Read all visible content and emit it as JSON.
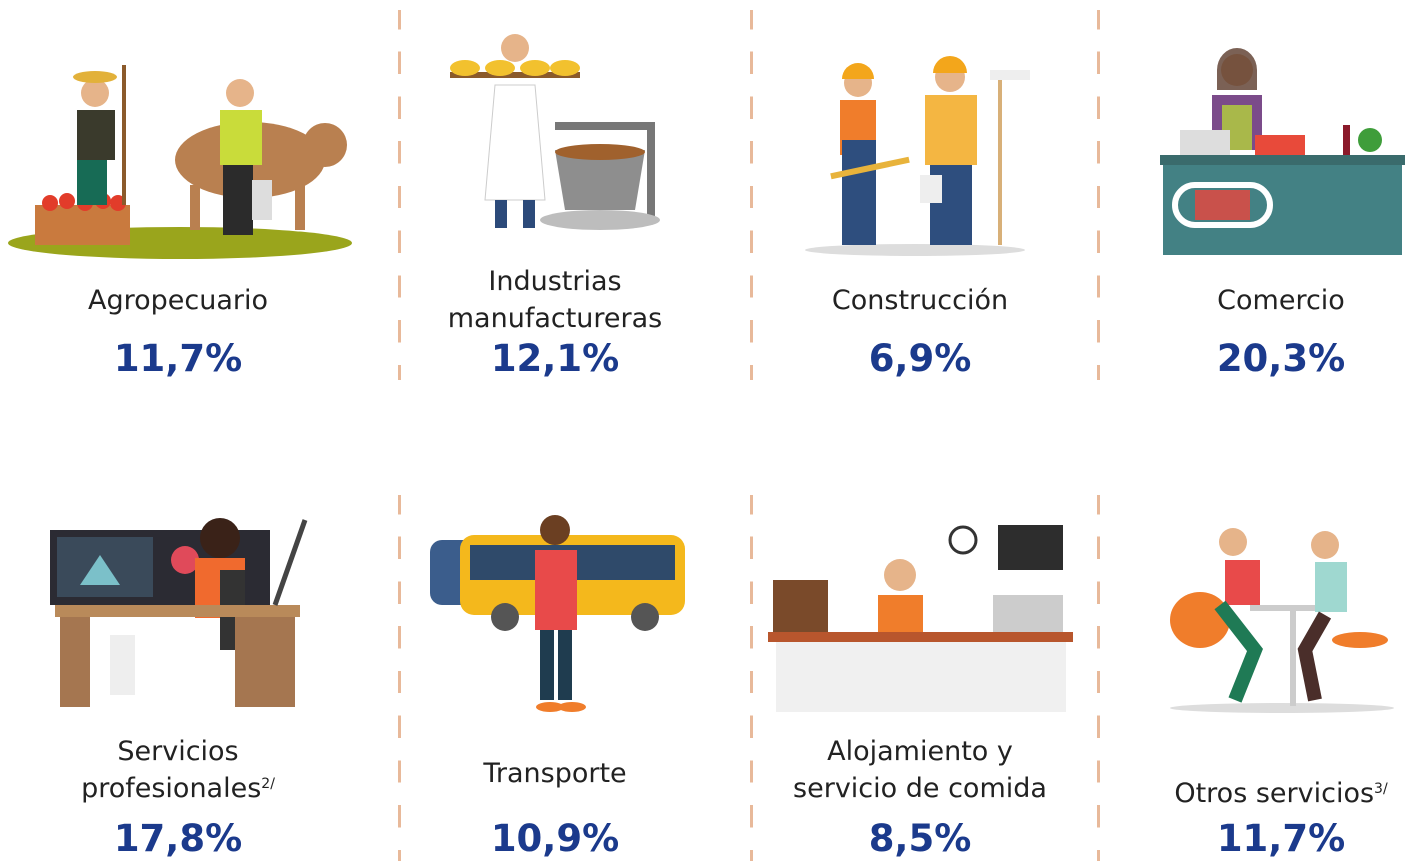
{
  "sectors": [
    {
      "label": [
        "Agropecuario"
      ],
      "share": "11,7%"
    },
    {
      "label": [
        "Industrias",
        "manufactureras"
      ],
      "share": "12,1%"
    },
    {
      "label": [
        "Construcción"
      ],
      "share": "6,9%"
    },
    {
      "label": [
        "Comercio"
      ],
      "share": "20,3%"
    },
    {
      "label": [
        "Servicios",
        "profesionales"
      ],
      "note": "2/",
      "share": "17,8%"
    },
    {
      "label": [
        "Transporte"
      ],
      "share": "10,9%"
    },
    {
      "label": [
        "Alojamiento y",
        "servicio de comida"
      ],
      "share": "8,5%"
    },
    {
      "label": [
        "Otros servicios"
      ],
      "note": "3/",
      "share": "11,7%"
    }
  ]
}
